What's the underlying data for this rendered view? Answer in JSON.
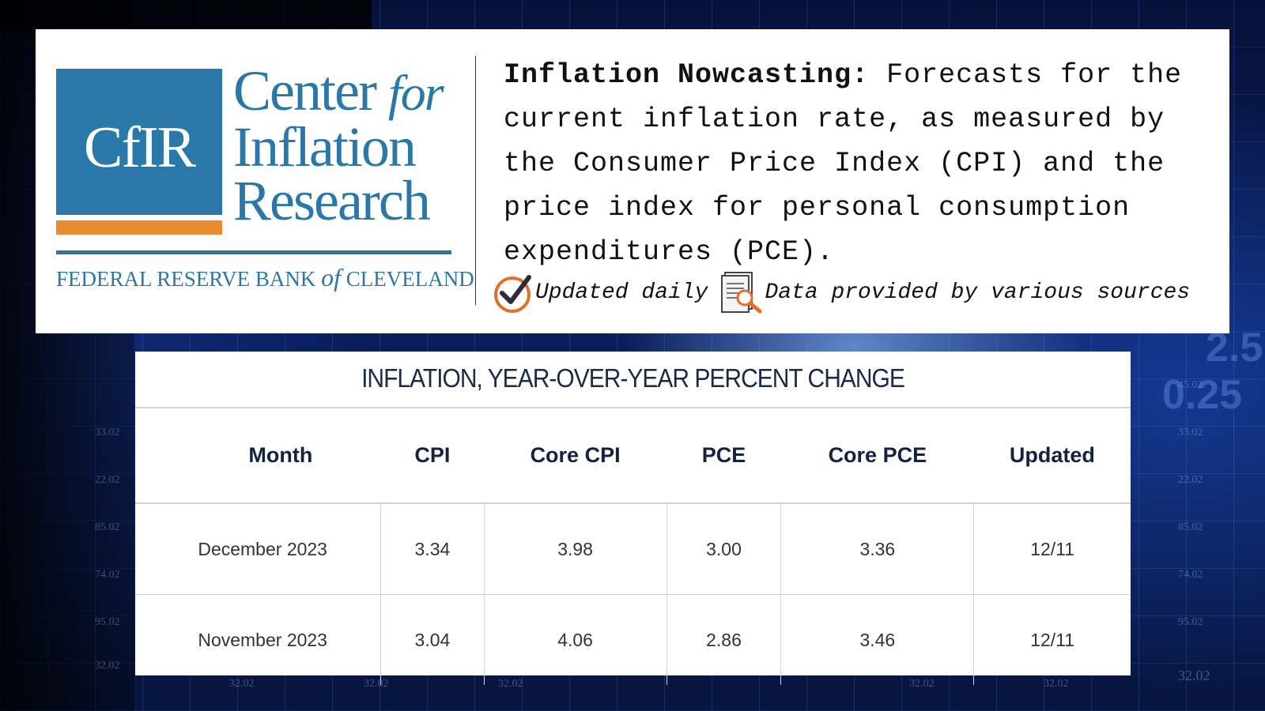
{
  "colors": {
    "brand_blue": "#2a77aa",
    "brand_orange": "#e98a2e",
    "table_header_text": "#15223f"
  },
  "logo": {
    "monogram": "CfIR",
    "line1": "Center",
    "line1_italic": "for",
    "line2": "Inflation",
    "line3": "Research",
    "bank_prefix": "FEDERAL RESERVE BANK",
    "bank_italic": "of",
    "bank_suffix": "CLEVELAND"
  },
  "description": {
    "heading": "Inflation Nowcasting:",
    "body": "Forecasts for the current inflation rate, as measured by the Consumer Price Index (CPI) and the price index for personal consumption expenditures (PCE)."
  },
  "meta": {
    "update_icon": "check-circle-icon",
    "update_text": "Updated daily",
    "source_icon": "document-search-icon",
    "source_text": "Data provided by various sources"
  },
  "table": {
    "title": "INFLATION, YEAR-OVER-YEAR PERCENT CHANGE",
    "columns": [
      "Month",
      "CPI",
      "Core CPI",
      "PCE",
      "Core PCE",
      "Updated"
    ],
    "rows": [
      [
        "December 2023",
        "3.34",
        "3.98",
        "3.00",
        "3.36",
        "12/11"
      ],
      [
        "November 2023",
        "3.04",
        "4.06",
        "2.86",
        "3.46",
        "12/11"
      ]
    ]
  }
}
